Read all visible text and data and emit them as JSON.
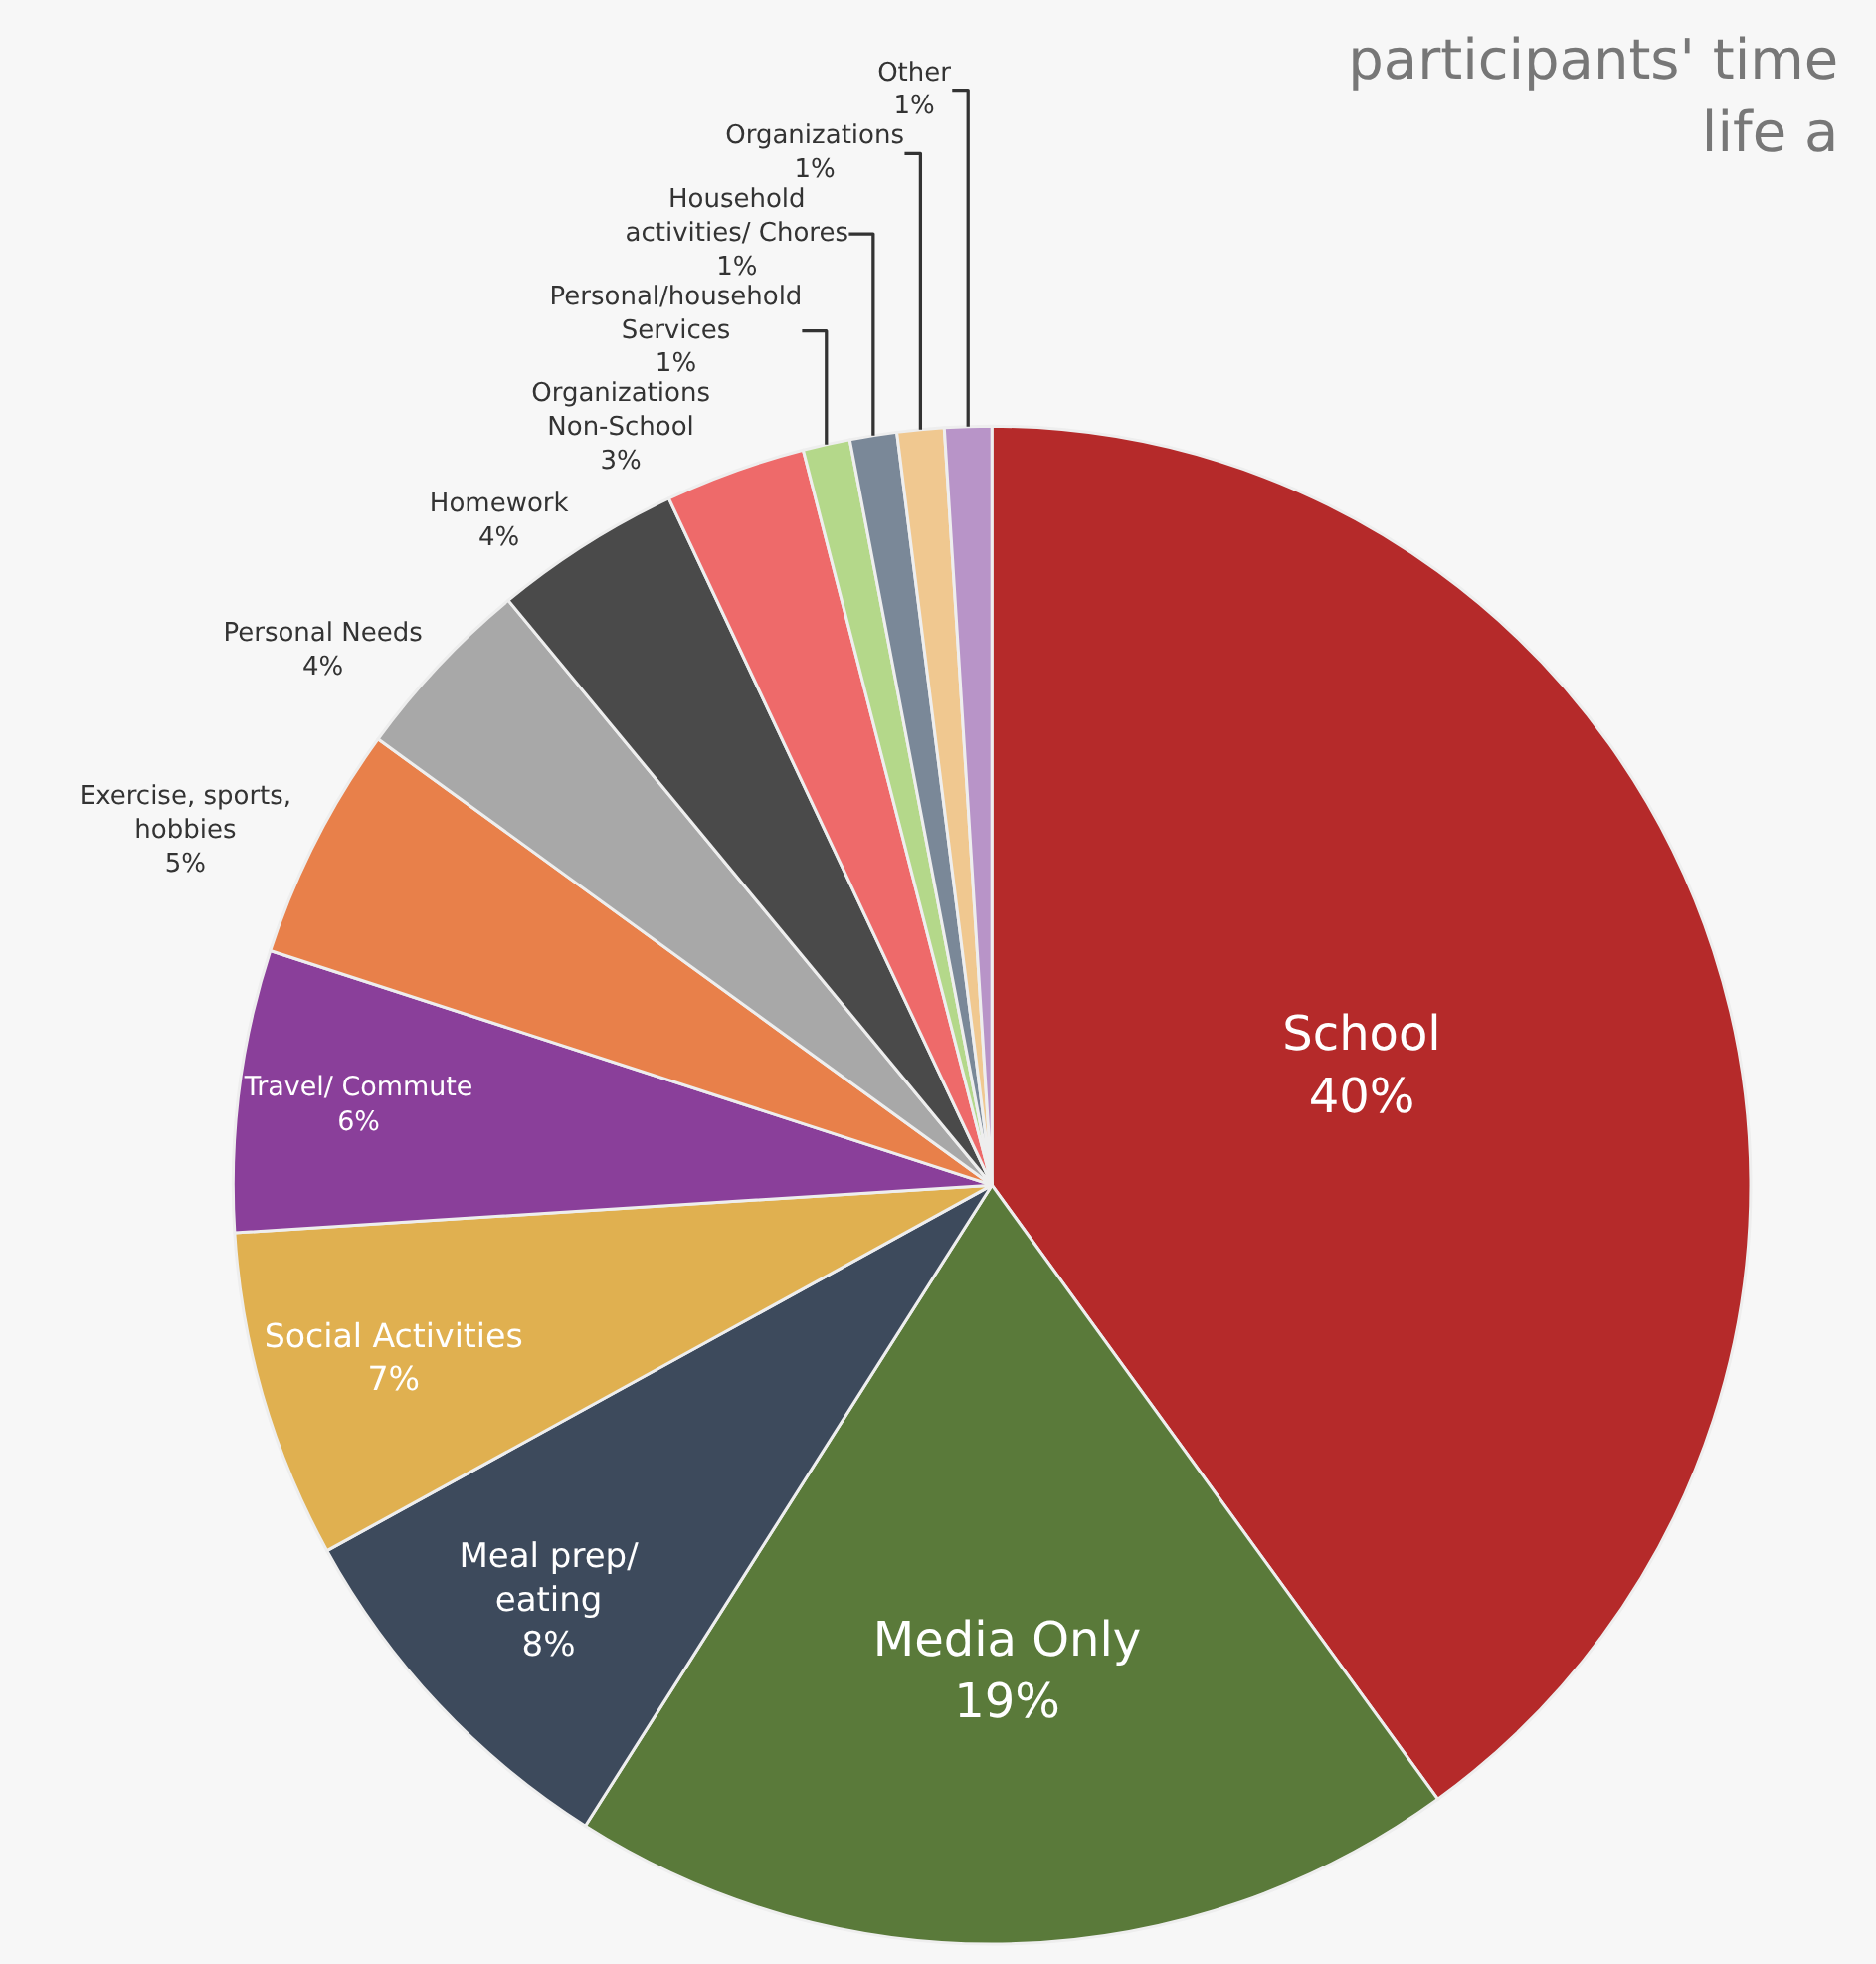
{
  "chart_data": {
    "type": "pie",
    "title": "participants' time\nlife a",
    "categories": [
      "School",
      "Media Only",
      "Meal prep/\neating",
      "Social Activities",
      "Travel/ Commute",
      "Exercise, sports,\nhobbies",
      "Personal Needs",
      "Homework",
      "Organizations\nNon-School",
      "Personal/household\nServices",
      "Household\nactivities/ Chores",
      "Organizations",
      "Other"
    ],
    "values": [
      40,
      19,
      8,
      7,
      6,
      5,
      4,
      4,
      3,
      1,
      1,
      1,
      1
    ],
    "value_labels": [
      "40%",
      "19%",
      "8%",
      "7%",
      "6%",
      "5%",
      "4%",
      "4%",
      "3%",
      "1%",
      "1%",
      "1%",
      "1%"
    ],
    "colors": [
      "#b52a2a",
      "#5a7a3a",
      "#3d4a5c",
      "#e0b050",
      "#8a3f9a",
      "#e8804a",
      "#a8a8a8",
      "#4a4a4a",
      "#ee6a6a",
      "#b4d88a",
      "#7a8898",
      "#f0c890",
      "#b894c8"
    ],
    "legend": false
  }
}
